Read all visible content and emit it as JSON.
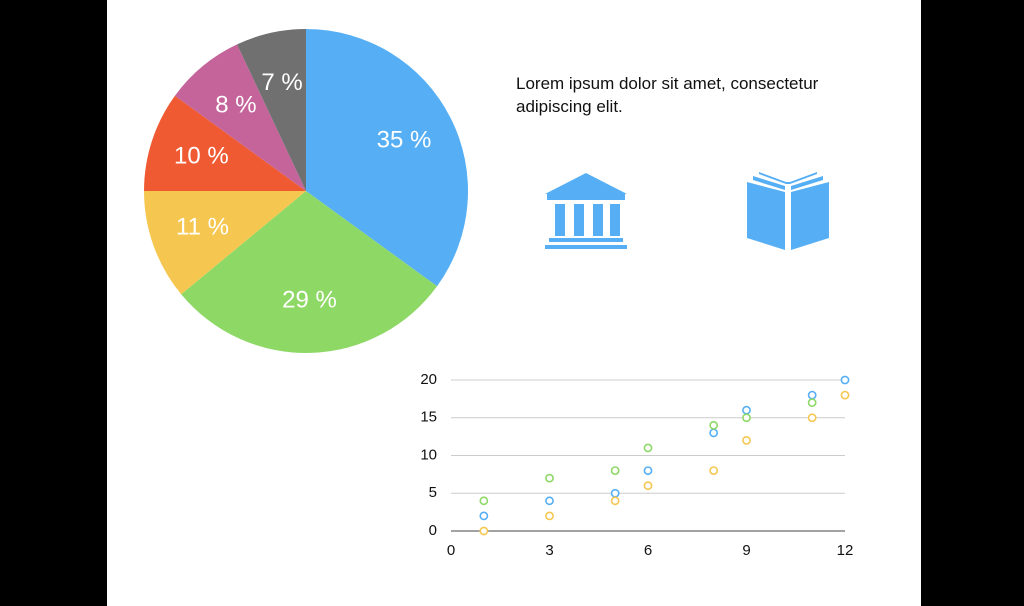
{
  "slide": {
    "text": "Lorem ipsum dolor sit amet, consectetur adipiscing elit.",
    "icons": [
      "bank-icon",
      "book-icon"
    ]
  },
  "colors": {
    "background": "#ffffff",
    "frame": "#000000",
    "icon": "#56aff5",
    "series": [
      "#56aff5",
      "#8ed866",
      "#f5c751"
    ]
  },
  "chart_data": [
    {
      "type": "pie",
      "slices": [
        {
          "label": "35 %",
          "value": 35,
          "color": "#56aff5"
        },
        {
          "label": "29 %",
          "value": 29,
          "color": "#8ed866"
        },
        {
          "label": "11 %",
          "value": 11,
          "color": "#f5c751"
        },
        {
          "label": "10 %",
          "value": 10,
          "color": "#f05a33"
        },
        {
          "label": "8 %",
          "value": 8,
          "color": "#c4649b"
        },
        {
          "label": "7 %",
          "value": 7,
          "color": "#707070"
        }
      ]
    },
    {
      "type": "scatter",
      "xlim": [
        0,
        12
      ],
      "ylim": [
        0,
        20
      ],
      "xticks": [
        "0",
        "3",
        "6",
        "9",
        "12"
      ],
      "yticks": [
        "0",
        "5",
        "10",
        "15",
        "20"
      ],
      "grid": true,
      "series": [
        {
          "color": "#56aff5",
          "points": [
            [
              1,
              2
            ],
            [
              3,
              4
            ],
            [
              5,
              5
            ],
            [
              6,
              8
            ],
            [
              8,
              13
            ],
            [
              9,
              16
            ],
            [
              11,
              18
            ],
            [
              12,
              20
            ]
          ]
        },
        {
          "color": "#8ed866",
          "points": [
            [
              1,
              4
            ],
            [
              3,
              7
            ],
            [
              5,
              8
            ],
            [
              6,
              11
            ],
            [
              8,
              14
            ],
            [
              9,
              15
            ],
            [
              11,
              17
            ]
          ]
        },
        {
          "color": "#f5c751",
          "points": [
            [
              1,
              0
            ],
            [
              3,
              2
            ],
            [
              5,
              4
            ],
            [
              6,
              6
            ],
            [
              8,
              8
            ],
            [
              9,
              12
            ],
            [
              11,
              15
            ],
            [
              12,
              18
            ]
          ]
        }
      ]
    }
  ]
}
